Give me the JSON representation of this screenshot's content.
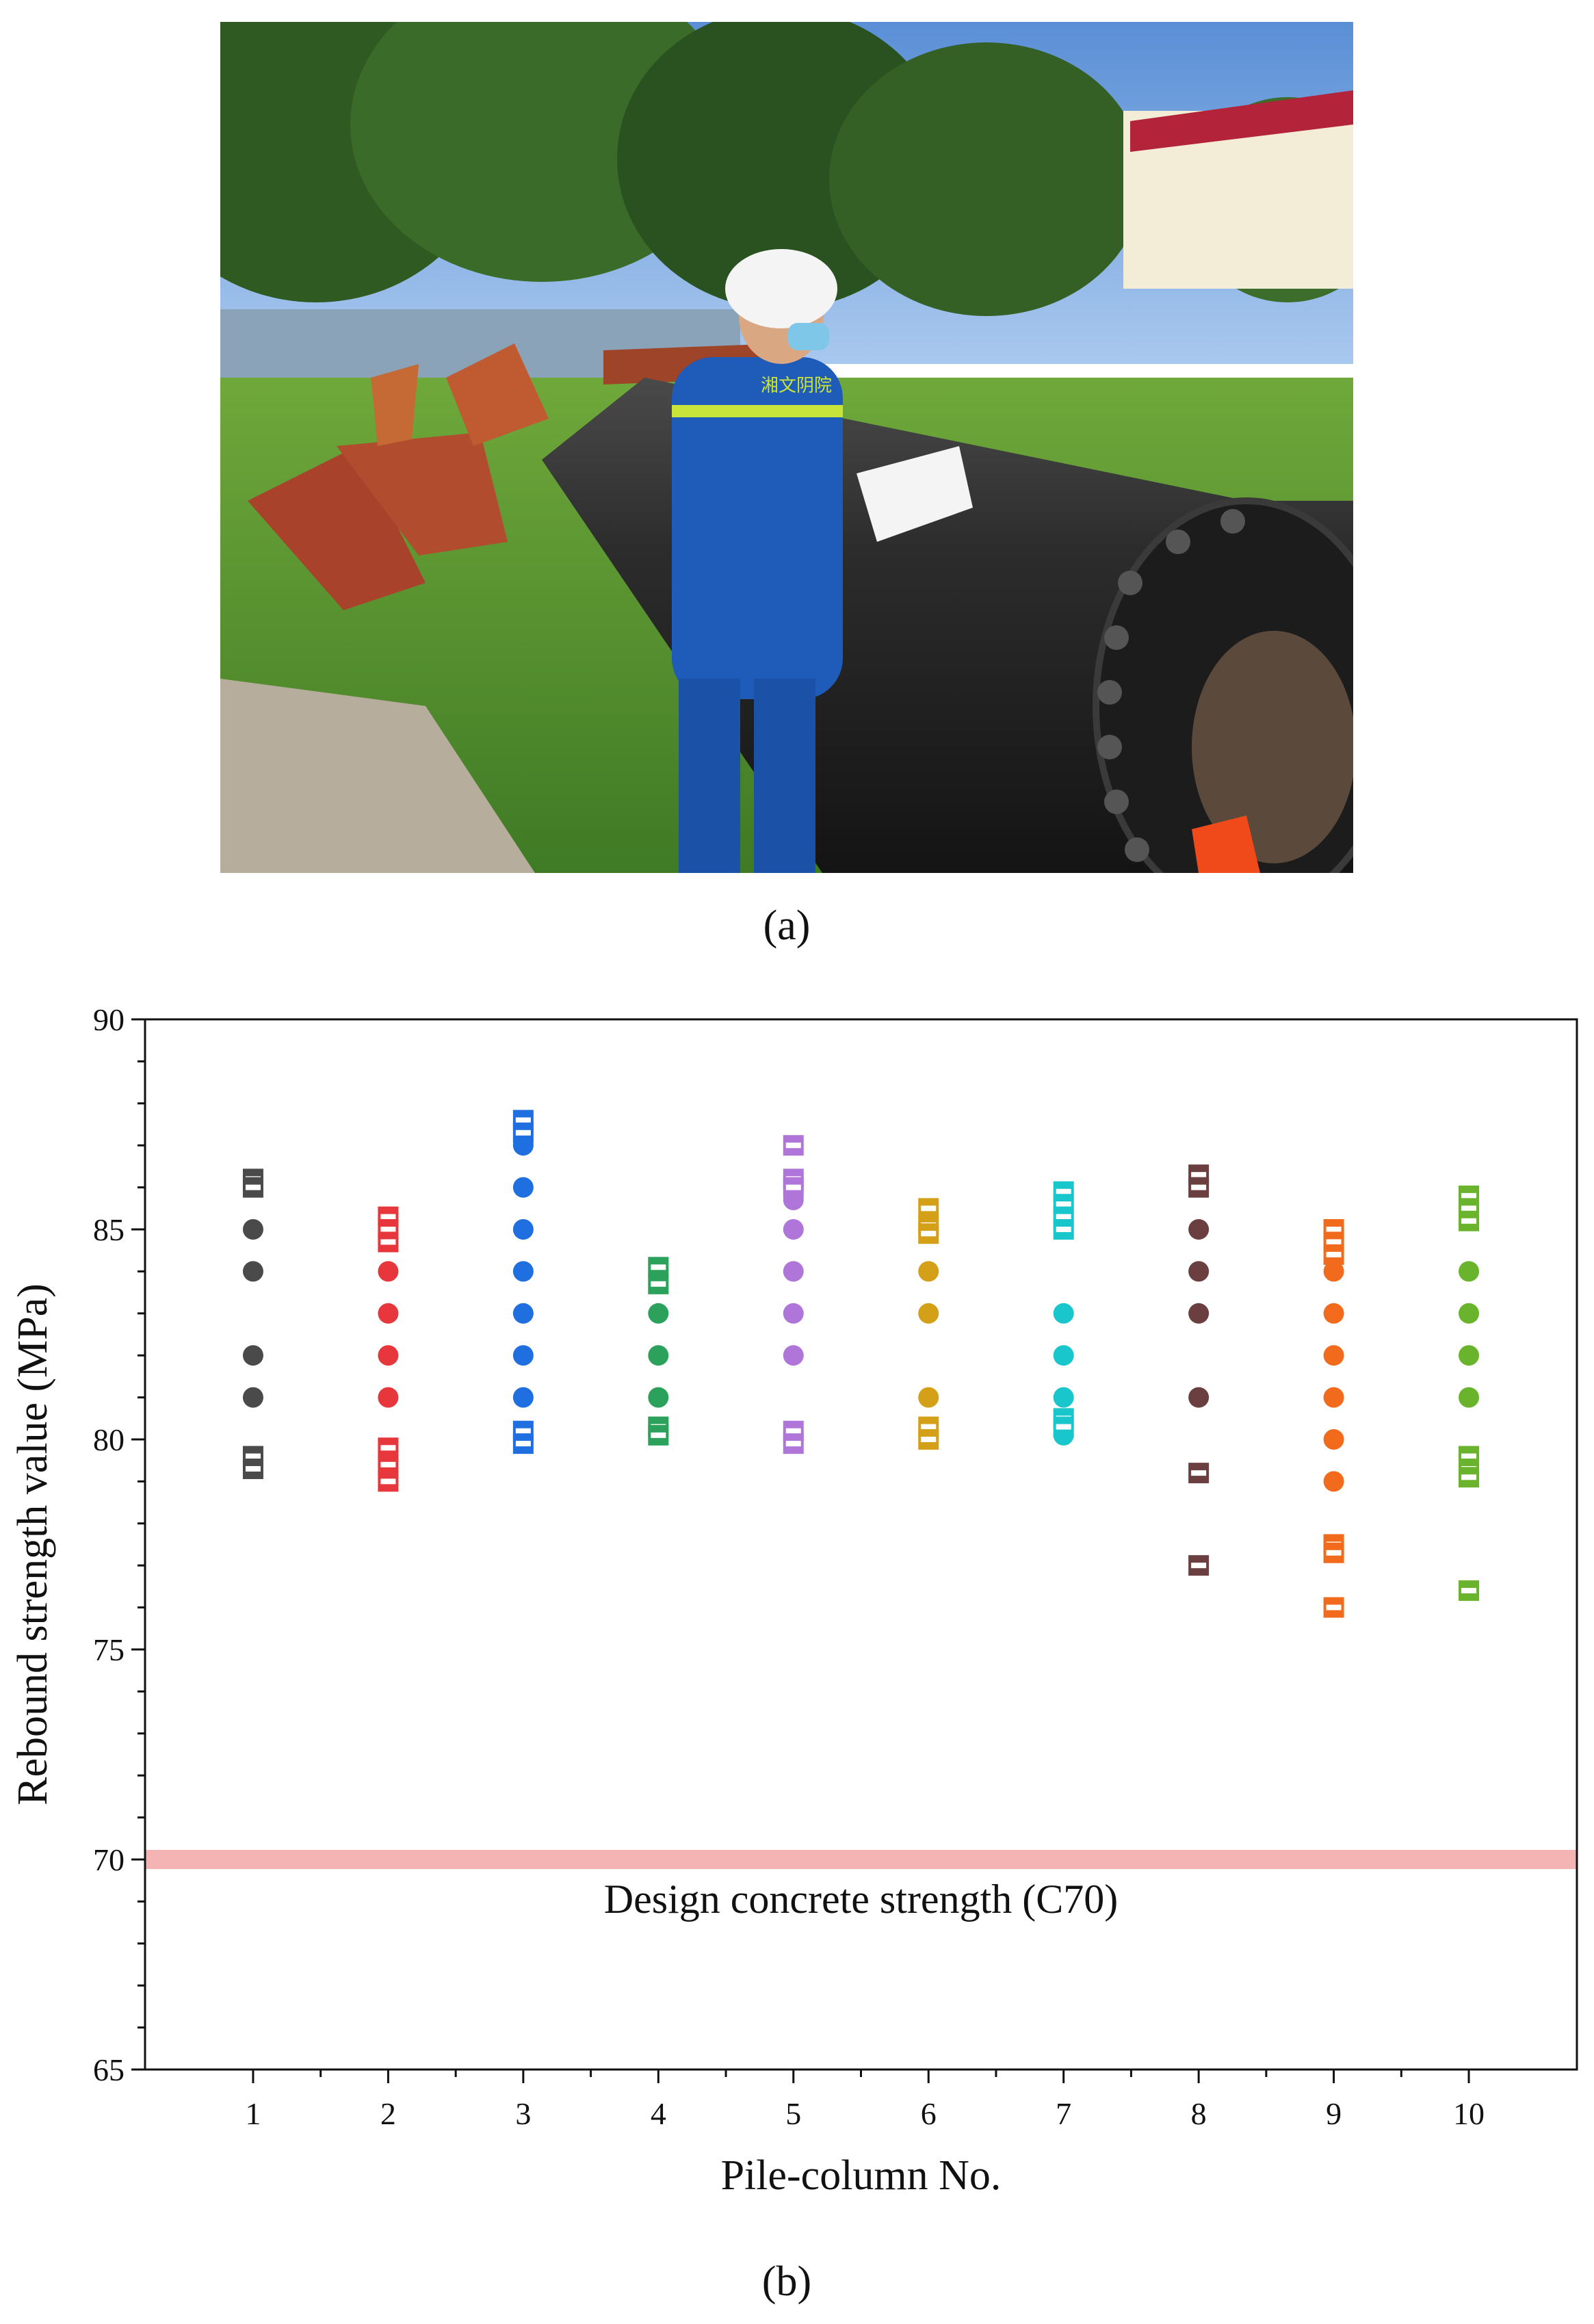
{
  "figure": {
    "caption_a": "(a)",
    "caption_b": "(b)",
    "photo": {
      "subject": "worker-measuring-steel-pile",
      "vest_text": "湘文阴院"
    }
  },
  "chart_data": {
    "type": "scatter",
    "title": "",
    "xlabel": "Pile-column No.",
    "ylabel": "Rebound strength value (MPa)",
    "xlim": [
      0.2,
      10.8
    ],
    "ylim": [
      65,
      90
    ],
    "xticks": [
      "1",
      "2",
      "3",
      "4",
      "5",
      "6",
      "7",
      "8",
      "9",
      "10"
    ],
    "yticks": [
      65,
      70,
      75,
      80,
      85,
      90
    ],
    "reference_line": {
      "y": 70,
      "label": "Design concrete strength (C70)",
      "color": "#f4b4b4"
    },
    "series": [
      {
        "name": "1",
        "x": 1,
        "color": "#4a4a4a",
        "circles": [
          85,
          84,
          82,
          81
        ],
        "squares": [
          86.2,
          86.0,
          79.6,
          79.3
        ]
      },
      {
        "name": "2",
        "x": 2,
        "color": "#e8363d",
        "circles": [
          84,
          83,
          82,
          81
        ],
        "squares": [
          85.3,
          85.0,
          84.7,
          79.8,
          79.4,
          79.0
        ]
      },
      {
        "name": "3",
        "x": 3,
        "color": "#1f6fe0",
        "circles": [
          87,
          86,
          85,
          84,
          83,
          82,
          81
        ],
        "squares": [
          87.6,
          87.3,
          80.2,
          79.9
        ]
      },
      {
        "name": "4",
        "x": 4,
        "color": "#2ba15b",
        "circles": [
          83,
          82,
          81
        ],
        "squares": [
          84.1,
          83.7,
          80.3,
          80.1
        ]
      },
      {
        "name": "5",
        "x": 5,
        "color": "#b075d9",
        "circles": [
          85.7,
          85,
          84,
          83,
          82
        ],
        "squares": [
          87.0,
          86.2,
          86.0,
          80.2,
          79.9
        ]
      },
      {
        "name": "6",
        "x": 6,
        "color": "#d4a017",
        "circles": [
          84,
          83,
          81
        ],
        "squares": [
          85.5,
          85.1,
          84.9,
          80.3,
          80.0
        ]
      },
      {
        "name": "7",
        "x": 7,
        "color": "#19c6cb",
        "circles": [
          83,
          82,
          81,
          80.1
        ],
        "squares": [
          85.9,
          85.6,
          85.3,
          85.0,
          80.5,
          80.3
        ]
      },
      {
        "name": "8",
        "x": 8,
        "color": "#6b3f3f",
        "circles": [
          85,
          84,
          83,
          81
        ],
        "squares": [
          86.3,
          86.0,
          79.2,
          77.0
        ]
      },
      {
        "name": "9",
        "x": 9,
        "color": "#f26b1d",
        "circles": [
          84,
          83,
          82,
          81,
          80,
          79
        ],
        "squares": [
          85.0,
          84.7,
          84.4,
          77.5,
          77.3,
          76.0
        ]
      },
      {
        "name": "10",
        "x": 10,
        "color": "#6ab42d",
        "circles": [
          84,
          83,
          82,
          81
        ],
        "squares": [
          85.8,
          85.5,
          85.2,
          79.6,
          79.3,
          79.1,
          76.4
        ]
      }
    ]
  }
}
